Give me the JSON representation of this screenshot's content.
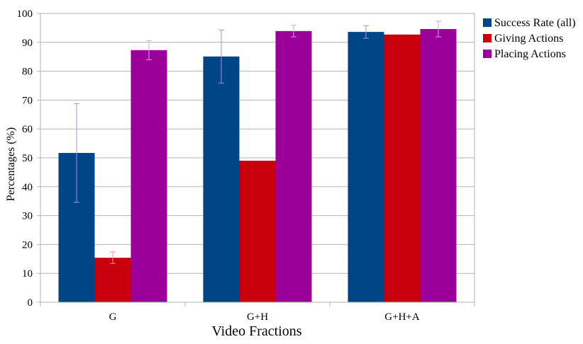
{
  "chart_data": {
    "type": "bar",
    "title": "",
    "xlabel": "Video Fractions",
    "ylabel": "Percentages (%)",
    "ylim": [
      0,
      100
    ],
    "yticks": [
      0,
      10,
      20,
      30,
      40,
      50,
      60,
      70,
      80,
      90,
      100
    ],
    "ytick_labels": [
      "0",
      "10",
      "20",
      "30",
      "40",
      "50",
      "60",
      "70",
      "80",
      "90",
      "100"
    ],
    "grid": true,
    "legend_position": "right",
    "categories": [
      "G",
      "G+H",
      "G+H+A"
    ],
    "series": [
      {
        "name": "Success Rate (all)",
        "color": "#004586",
        "error_color": "#a48cf0",
        "values": [
          51.7,
          85.1,
          93.6
        ],
        "errors": [
          17.1,
          9.2,
          2.2
        ]
      },
      {
        "name": "Giving Actions",
        "color": "#c9000c",
        "error_color": "#ff8c8c",
        "values": [
          15.4,
          49.0,
          92.7
        ],
        "errors": [
          2.0,
          0.0,
          0.0
        ]
      },
      {
        "name": "Placing Actions",
        "color": "#9a0099",
        "error_color": "#d7a0f0",
        "values": [
          87.3,
          93.9,
          94.6
        ],
        "errors": [
          3.3,
          2.0,
          2.7
        ]
      }
    ]
  }
}
